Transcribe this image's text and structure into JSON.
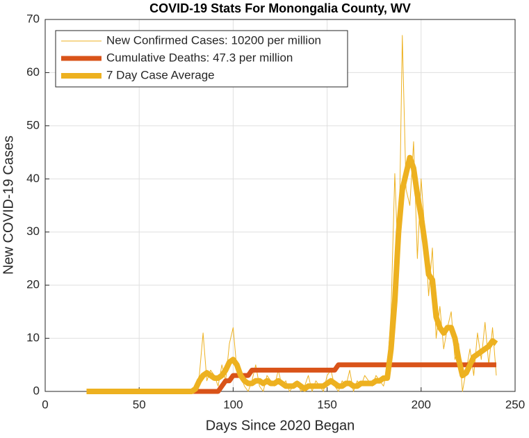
{
  "chart_data": {
    "type": "line",
    "title": "COVID-19 Stats For Monongalia County, WV",
    "xlabel": "Days Since 2020 Began",
    "ylabel": "New COVID-19 Cases",
    "xlim": [
      0,
      250
    ],
    "xticks": [
      0,
      50,
      100,
      150,
      200,
      250
    ],
    "ylim": [
      0,
      70
    ],
    "yticks": [
      0,
      10,
      20,
      30,
      40,
      50,
      60,
      70
    ],
    "grid": true,
    "legend": "upper-left",
    "x": [
      22,
      24,
      26,
      28,
      30,
      32,
      34,
      36,
      38,
      40,
      42,
      44,
      46,
      48,
      50,
      52,
      54,
      56,
      58,
      60,
      62,
      64,
      66,
      68,
      70,
      72,
      74,
      76,
      78,
      80,
      82,
      84,
      86,
      88,
      90,
      92,
      94,
      96,
      98,
      100,
      102,
      104,
      106,
      108,
      110,
      112,
      114,
      116,
      118,
      120,
      122,
      124,
      126,
      128,
      130,
      132,
      134,
      136,
      138,
      140,
      142,
      144,
      146,
      148,
      150,
      152,
      154,
      156,
      158,
      160,
      162,
      164,
      166,
      168,
      170,
      172,
      174,
      176,
      178,
      180,
      182,
      184,
      186,
      188,
      190,
      192,
      194,
      196,
      198,
      200,
      202,
      204,
      206,
      208,
      210,
      212,
      214,
      216,
      218,
      220,
      222,
      224,
      226,
      228,
      230,
      232,
      234,
      236,
      238,
      240
    ],
    "series": [
      {
        "name": "New Confirmed Cases: 10200 per million",
        "color": "#EDB120",
        "width": 1,
        "values": [
          0,
          0,
          0,
          0,
          0,
          0,
          0,
          0,
          0,
          0,
          0,
          0,
          0,
          0,
          0,
          0,
          0,
          0,
          0,
          0,
          0,
          0,
          0,
          0,
          0,
          0,
          0,
          0,
          0,
          1,
          3,
          11,
          2,
          4,
          3,
          1,
          5,
          2,
          9,
          12,
          4,
          3,
          1,
          0,
          2,
          5,
          1,
          0,
          3,
          2,
          1,
          4,
          1,
          2,
          0,
          1,
          2,
          0,
          1,
          3,
          0,
          2,
          1,
          0,
          3,
          4,
          1,
          0,
          2,
          1,
          4,
          0,
          2,
          1,
          3,
          2,
          1,
          3,
          2,
          1,
          4,
          15,
          41,
          22,
          67,
          38,
          35,
          47,
          25,
          40,
          30,
          18,
          27,
          10,
          16,
          8,
          12,
          15,
          6,
          9,
          0,
          4,
          8,
          3,
          11,
          6,
          13,
          5,
          12,
          3
        ]
      },
      {
        "name": "Cumulative Deaths: 47.3 per million",
        "color": "#D95319",
        "width": 7,
        "values": [
          0,
          0,
          0,
          0,
          0,
          0,
          0,
          0,
          0,
          0,
          0,
          0,
          0,
          0,
          0,
          0,
          0,
          0,
          0,
          0,
          0,
          0,
          0,
          0,
          0,
          0,
          0,
          0,
          0,
          0,
          0,
          0,
          0,
          0,
          0,
          0,
          1,
          2,
          2,
          3,
          3,
          3,
          3,
          3,
          4,
          4,
          4,
          4,
          4,
          4,
          4,
          4,
          4,
          4,
          4,
          4,
          4,
          4,
          4,
          4,
          4,
          4,
          4,
          4,
          4,
          4,
          4,
          5,
          5,
          5,
          5,
          5,
          5,
          5,
          5,
          5,
          5,
          5,
          5,
          5,
          5,
          5,
          5,
          5,
          5,
          5,
          5,
          5,
          5,
          5,
          5,
          5,
          5,
          5,
          5,
          5,
          5,
          5,
          5,
          5,
          5,
          5,
          5,
          5,
          5,
          5,
          5,
          5,
          5,
          5
        ]
      },
      {
        "name": "7 Day Case Average",
        "color": "#EDB120",
        "width": 8,
        "values": [
          0,
          0,
          0,
          0,
          0,
          0,
          0,
          0,
          0,
          0,
          0,
          0,
          0,
          0,
          0,
          0,
          0,
          0,
          0,
          0,
          0,
          0,
          0,
          0,
          0,
          0,
          0,
          0,
          0,
          0.5,
          2,
          3,
          3.5,
          3,
          2.5,
          2.5,
          3,
          4,
          5.5,
          6,
          5,
          3,
          2,
          1.5,
          1.5,
          2,
          2,
          1.5,
          2,
          1.5,
          1.5,
          2,
          1.5,
          1,
          1,
          1,
          1.5,
          1,
          0.5,
          1,
          1,
          1,
          1,
          1,
          1.5,
          2,
          1.5,
          1,
          1,
          1.5,
          1.5,
          1,
          1,
          1.5,
          1.5,
          1.5,
          1.5,
          2,
          2,
          2.5,
          2.5,
          8,
          17,
          30,
          38,
          41,
          44,
          42,
          37,
          33,
          28,
          22,
          21,
          14,
          12,
          11,
          12,
          12,
          10,
          6,
          3,
          3.5,
          5,
          6.5,
          7,
          7.5,
          8,
          8.5,
          9.5,
          9
        ]
      }
    ]
  }
}
